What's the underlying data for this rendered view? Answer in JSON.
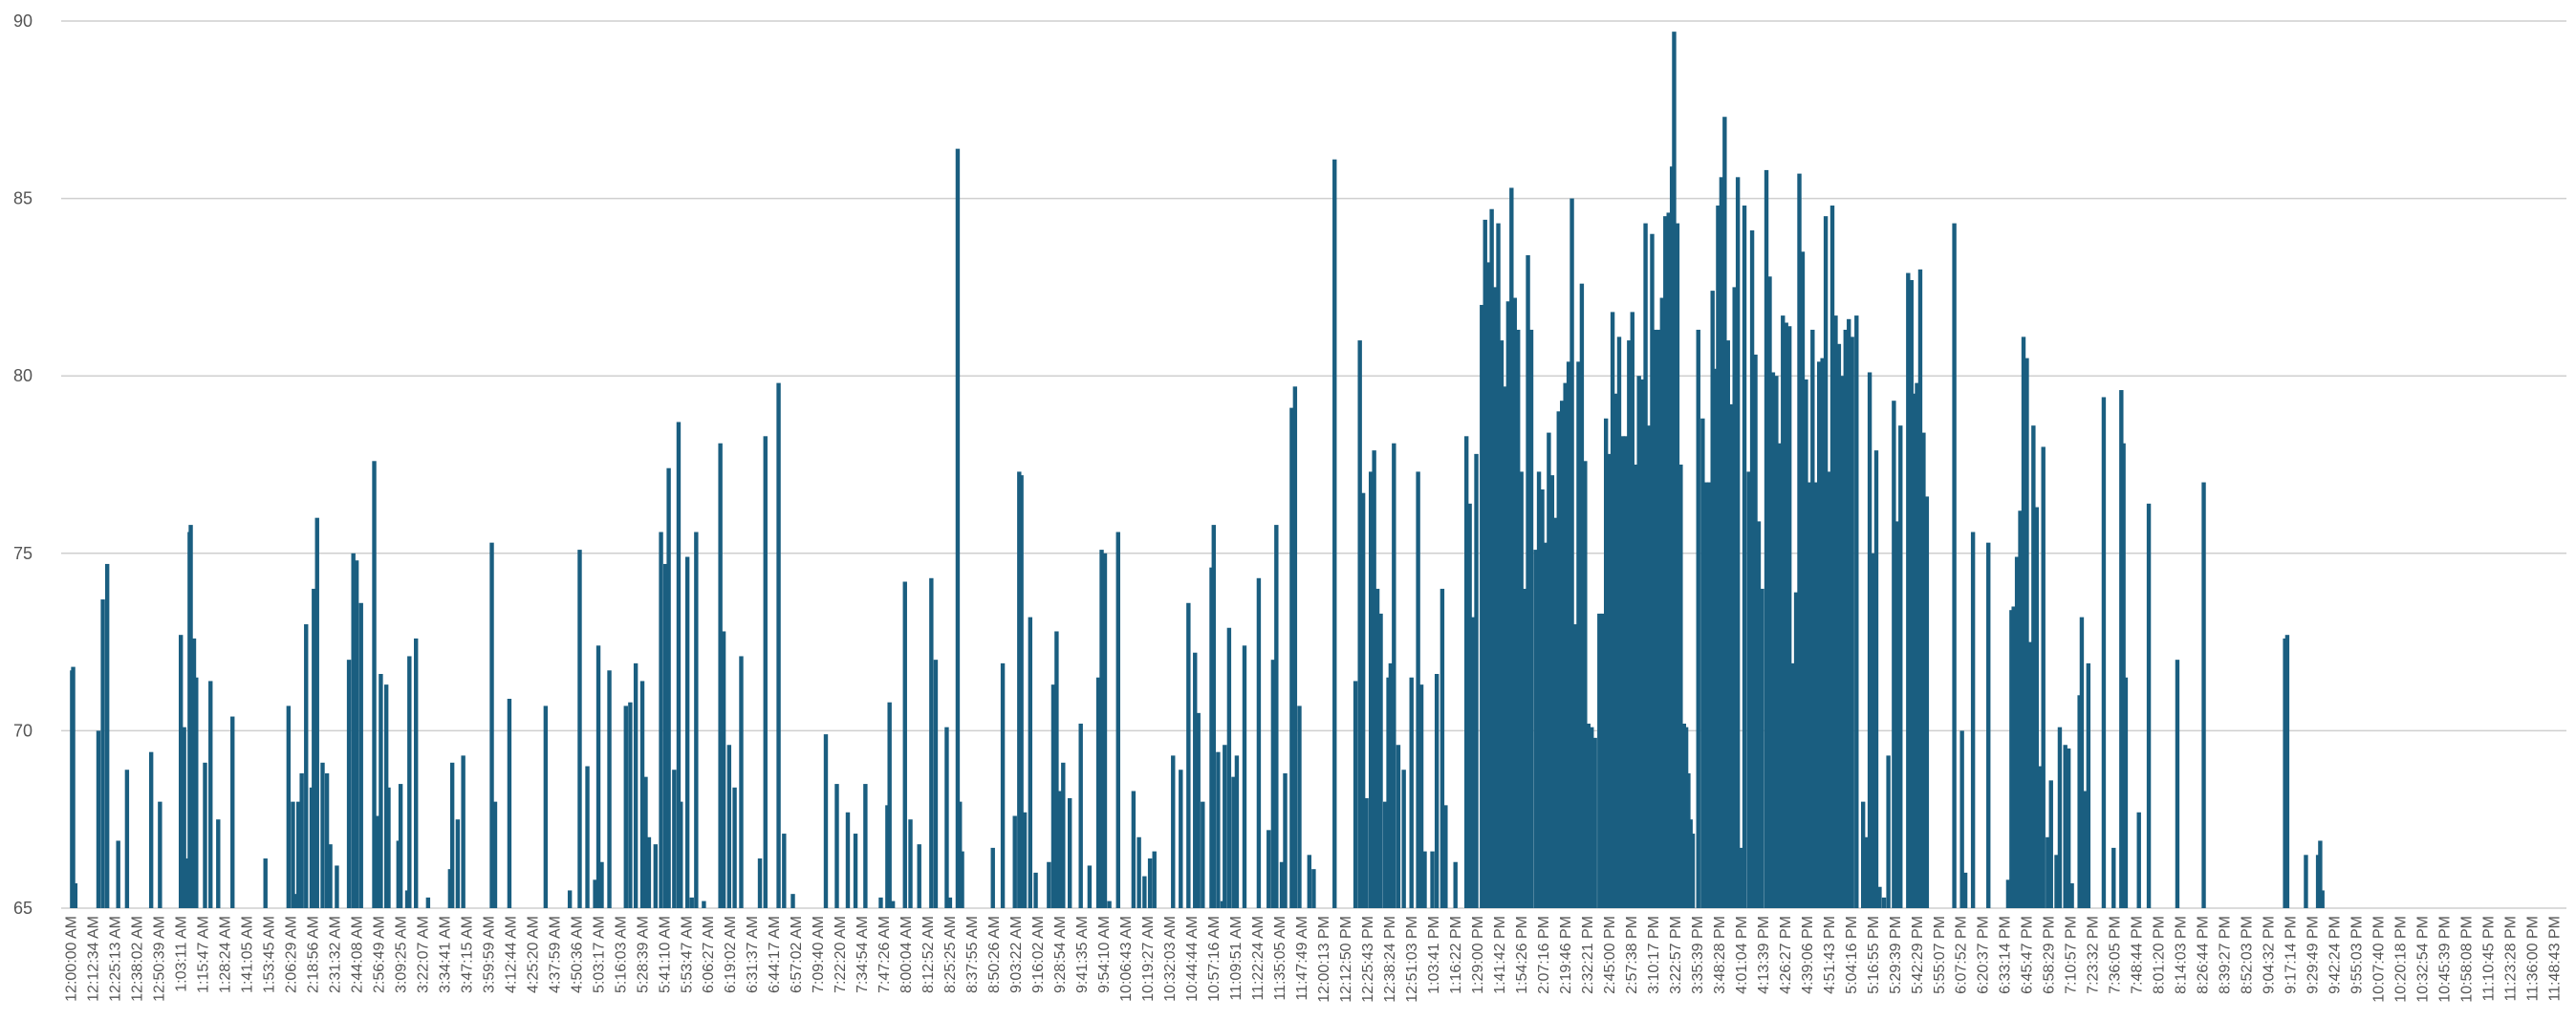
{
  "chart_data": {
    "type": "bar",
    "title": "",
    "xlabel": "",
    "ylabel": "",
    "ylim": [
      65,
      90
    ],
    "grid": true,
    "legend": "none",
    "bar_color": "#1a5e80",
    "y_ticks": [
      "65",
      "70",
      "75",
      "80",
      "85",
      "90"
    ],
    "categories": [
      "12:00:00 AM",
      "12:12:34 AM",
      "12:25:13 AM",
      "12:38:02 AM",
      "12:50:39 AM",
      "1:03:11 AM",
      "1:15:47 AM",
      "1:28:24 AM",
      "1:41:05 AM",
      "1:53:45 AM",
      "2:06:29 AM",
      "2:18:56 AM",
      "2:31:32 AM",
      "2:44:08 AM",
      "2:56:49 AM",
      "3:09:25 AM",
      "3:22:07 AM",
      "3:34:41 AM",
      "3:47:15 AM",
      "3:59:59 AM",
      "4:12:44 AM",
      "4:25:20 AM",
      "4:37:59 AM",
      "4:50:36 AM",
      "5:03:17 AM",
      "5:16:03 AM",
      "5:28:39 AM",
      "5:41:10 AM",
      "5:53:47 AM",
      "6:06:27 AM",
      "6:19:02 AM",
      "6:31:37 AM",
      "6:44:17 AM",
      "6:57:02 AM",
      "7:09:40 AM",
      "7:22:20 AM",
      "7:34:54 AM",
      "7:47:26 AM",
      "8:00:04 AM",
      "8:12:52 AM",
      "8:25:25 AM",
      "8:37:55 AM",
      "8:50:26 AM",
      "9:03:22 AM",
      "9:16:02 AM",
      "9:28:54 AM",
      "9:41:35 AM",
      "9:54:10 AM",
      "10:06:43 AM",
      "10:19:27 AM",
      "10:32:03 AM",
      "10:44:44 AM",
      "10:57:16 AM",
      "11:09:51 AM",
      "11:22:24 AM",
      "11:35:05 AM",
      "11:47:49 AM",
      "12:00:13 PM",
      "12:12:50 PM",
      "12:25:43 PM",
      "12:38:24 PM",
      "12:51:03 PM",
      "1:03:41 PM",
      "1:16:22 PM",
      "1:29:00 PM",
      "1:41:42 PM",
      "1:54:26 PM",
      "2:07:16 PM",
      "2:19:46 PM",
      "2:32:21 PM",
      "2:45:00 PM",
      "2:57:38 PM",
      "3:10:17 PM",
      "3:22:57 PM",
      "3:35:39 PM",
      "3:48:28 PM",
      "4:01:04 PM",
      "4:13:39 PM",
      "4:26:27 PM",
      "4:39:06 PM",
      "4:51:43 PM",
      "5:04:16 PM",
      "5:16:55 PM",
      "5:29:39 PM",
      "5:42:29 PM",
      "5:55:07 PM",
      "6:07:52 PM",
      "6:20:37 PM",
      "6:33:14 PM",
      "6:45:47 PM",
      "6:58:29 PM",
      "7:10:57 PM",
      "7:23:32 PM",
      "7:36:05 PM",
      "7:48:44 PM",
      "8:01:20 PM",
      "8:14:03 PM",
      "8:26:44 PM",
      "8:39:27 PM",
      "8:52:03 PM",
      "9:04:32 PM",
      "9:17:14 PM",
      "9:29:49 PM",
      "9:42:24 PM",
      "9:55:03 PM",
      "10:07:40 PM",
      "10:20:18 PM",
      "10:32:54 PM",
      "10:45:39 PM",
      "10:58:08 PM",
      "11:10:45 PM",
      "11:23:28 PM",
      "11:36:00 PM",
      "11:48:43 PM"
    ],
    "bars": [
      [
        0.4,
        71.7
      ],
      [
        0.45,
        71.8
      ],
      [
        0.55,
        65.7
      ],
      [
        1.6,
        70.0
      ],
      [
        1.8,
        73.7
      ],
      [
        2.0,
        74.7
      ],
      [
        2.5,
        66.9
      ],
      [
        2.9,
        68.9
      ],
      [
        4.0,
        69.4
      ],
      [
        4.4,
        68.0
      ],
      [
        5.35,
        72.7
      ],
      [
        5.5,
        70.1
      ],
      [
        5.6,
        66.4
      ],
      [
        5.75,
        75.6
      ],
      [
        5.8,
        75.8
      ],
      [
        5.95,
        72.6
      ],
      [
        6.05,
        71.5
      ],
      [
        6.45,
        69.1
      ],
      [
        6.7,
        71.4
      ],
      [
        7.05,
        67.5
      ],
      [
        7.7,
        70.4
      ],
      [
        9.2,
        66.4
      ],
      [
        10.25,
        70.7
      ],
      [
        10.45,
        68.0
      ],
      [
        10.55,
        65.4
      ],
      [
        10.7,
        68.0
      ],
      [
        10.85,
        68.8
      ],
      [
        11.05,
        73.0
      ],
      [
        11.3,
        68.4
      ],
      [
        11.4,
        74.0
      ],
      [
        11.55,
        76.0
      ],
      [
        11.8,
        69.1
      ],
      [
        12.0,
        68.8
      ],
      [
        12.15,
        66.8
      ],
      [
        12.45,
        66.2
      ],
      [
        13.0,
        72.0
      ],
      [
        13.2,
        75.0
      ],
      [
        13.35,
        74.8
      ],
      [
        13.55,
        73.6
      ],
      [
        14.15,
        77.6
      ],
      [
        14.3,
        67.6
      ],
      [
        14.45,
        71.6
      ],
      [
        14.7,
        71.3
      ],
      [
        14.8,
        68.4
      ],
      [
        15.25,
        66.9
      ],
      [
        15.35,
        68.5
      ],
      [
        15.75,
        72.1
      ],
      [
        15.65,
        65.5
      ],
      [
        16.05,
        72.6
      ],
      [
        16.6,
        65.3
      ],
      [
        17.6,
        66.1
      ],
      [
        17.7,
        69.1
      ],
      [
        17.95,
        67.5
      ],
      [
        18.2,
        69.3
      ],
      [
        19.5,
        75.3
      ],
      [
        19.65,
        68.0
      ],
      [
        20.3,
        70.9
      ],
      [
        20.95,
        65.0
      ],
      [
        21.95,
        70.7
      ],
      [
        23.05,
        65.5
      ],
      [
        23.5,
        75.1
      ],
      [
        23.85,
        69.0
      ],
      [
        24.2,
        65.8
      ],
      [
        24.35,
        72.4
      ],
      [
        24.5,
        66.3
      ],
      [
        24.85,
        71.7
      ],
      [
        25.6,
        70.7
      ],
      [
        25.8,
        70.8
      ],
      [
        26.05,
        71.9
      ],
      [
        26.35,
        71.4
      ],
      [
        26.5,
        68.7
      ],
      [
        26.65,
        67.0
      ],
      [
        26.95,
        66.8
      ],
      [
        27.2,
        75.6
      ],
      [
        27.4,
        74.7
      ],
      [
        27.55,
        77.4
      ],
      [
        27.8,
        68.9
      ],
      [
        28.0,
        78.7
      ],
      [
        28.1,
        68.0
      ],
      [
        28.4,
        74.9
      ],
      [
        28.6,
        65.3
      ],
      [
        28.8,
        75.6
      ],
      [
        29.15,
        65.2
      ],
      [
        29.5,
        65.0
      ],
      [
        29.9,
        78.1
      ],
      [
        30.05,
        72.8
      ],
      [
        30.3,
        69.6
      ],
      [
        30.55,
        68.4
      ],
      [
        30.85,
        72.1
      ],
      [
        31.7,
        66.4
      ],
      [
        31.95,
        78.3
      ],
      [
        32.55,
        79.8
      ],
      [
        32.8,
        67.1
      ],
      [
        33.2,
        65.4
      ],
      [
        34.7,
        69.9
      ],
      [
        35.2,
        68.5
      ],
      [
        35.7,
        67.7
      ],
      [
        36.05,
        67.1
      ],
      [
        36.5,
        68.5
      ],
      [
        37.2,
        65.3
      ],
      [
        37.5,
        67.9
      ],
      [
        37.6,
        70.8
      ],
      [
        37.75,
        65.2
      ],
      [
        38.3,
        74.2
      ],
      [
        38.55,
        67.5
      ],
      [
        38.95,
        66.8
      ],
      [
        39.5,
        74.3
      ],
      [
        39.7,
        72.0
      ],
      [
        40.2,
        70.1
      ],
      [
        40.35,
        65.3
      ],
      [
        40.7,
        86.4
      ],
      [
        40.8,
        68.0
      ],
      [
        40.9,
        66.6
      ],
      [
        42.3,
        66.7
      ],
      [
        42.75,
        71.9
      ],
      [
        43.05,
        65.0
      ],
      [
        43.3,
        67.6
      ],
      [
        43.5,
        77.3
      ],
      [
        43.6,
        77.2
      ],
      [
        43.75,
        67.7
      ],
      [
        44.0,
        73.2
      ],
      [
        44.25,
        66.0
      ],
      [
        44.85,
        66.3
      ],
      [
        45.05,
        71.3
      ],
      [
        45.2,
        72.8
      ],
      [
        45.35,
        68.3
      ],
      [
        45.5,
        69.1
      ],
      [
        45.8,
        68.1
      ],
      [
        46.05,
        65.0
      ],
      [
        46.3,
        70.2
      ],
      [
        46.7,
        66.2
      ],
      [
        47.1,
        71.5
      ],
      [
        47.25,
        75.1
      ],
      [
        47.4,
        75.0
      ],
      [
        47.6,
        65.2
      ],
      [
        48.0,
        75.6
      ],
      [
        48.7,
        68.3
      ],
      [
        48.95,
        67.0
      ],
      [
        49.2,
        65.9
      ],
      [
        49.45,
        66.4
      ],
      [
        49.65,
        66.6
      ],
      [
        50.5,
        69.3
      ],
      [
        50.85,
        68.9
      ],
      [
        51.2,
        73.6
      ],
      [
        51.5,
        72.2
      ],
      [
        51.65,
        70.5
      ],
      [
        51.85,
        68.0
      ],
      [
        52.25,
        74.6
      ],
      [
        52.35,
        75.8
      ],
      [
        52.55,
        69.4
      ],
      [
        52.75,
        65.2
      ],
      [
        52.85,
        69.6
      ],
      [
        53.05,
        72.9
      ],
      [
        53.25,
        68.7
      ],
      [
        53.4,
        69.3
      ],
      [
        53.75,
        72.4
      ],
      [
        54.4,
        74.3
      ],
      [
        54.85,
        67.2
      ],
      [
        55.05,
        72.0
      ],
      [
        55.2,
        75.8
      ],
      [
        55.45,
        66.3
      ],
      [
        55.6,
        68.8
      ],
      [
        55.9,
        79.1
      ],
      [
        56.05,
        79.7
      ],
      [
        56.25,
        70.7
      ],
      [
        56.7,
        66.5
      ],
      [
        56.9,
        66.1
      ],
      [
        57.85,
        86.1
      ],
      [
        58.8,
        71.4
      ],
      [
        59.0,
        81.0
      ],
      [
        59.15,
        76.7
      ],
      [
        59.3,
        68.1
      ],
      [
        59.5,
        77.3
      ],
      [
        59.65,
        77.9
      ],
      [
        59.8,
        74.0
      ],
      [
        59.95,
        73.3
      ],
      [
        60.15,
        68.0
      ],
      [
        60.3,
        71.5
      ],
      [
        60.4,
        71.9
      ],
      [
        60.55,
        78.1
      ],
      [
        60.75,
        69.6
      ],
      [
        61.0,
        68.9
      ],
      [
        61.35,
        71.5
      ],
      [
        61.65,
        77.3
      ],
      [
        61.8,
        71.3
      ],
      [
        61.95,
        66.6
      ],
      [
        62.3,
        66.6
      ],
      [
        62.5,
        71.6
      ],
      [
        62.75,
        74.0
      ],
      [
        62.9,
        67.9
      ],
      [
        63.35,
        66.3
      ],
      [
        63.85,
        78.3
      ],
      [
        64.0,
        76.4
      ],
      [
        64.15,
        73.2
      ],
      [
        64.3,
        77.8
      ],
      [
        64.55,
        82.0
      ],
      [
        64.7,
        84.4
      ],
      [
        64.85,
        83.2
      ],
      [
        65.0,
        84.7
      ],
      [
        65.15,
        82.5
      ],
      [
        65.3,
        84.3
      ],
      [
        65.45,
        81.0
      ],
      [
        65.6,
        79.7
      ],
      [
        65.75,
        82.1
      ],
      [
        65.9,
        85.3
      ],
      [
        66.05,
        82.2
      ],
      [
        66.2,
        81.3
      ],
      [
        66.35,
        77.3
      ],
      [
        66.5,
        74.0
      ],
      [
        66.65,
        83.4
      ],
      [
        66.8,
        81.3
      ],
      [
        67.0,
        75.1
      ],
      [
        67.15,
        77.3
      ],
      [
        67.3,
        76.8
      ],
      [
        67.45,
        75.3
      ],
      [
        67.6,
        78.4
      ],
      [
        67.75,
        77.2
      ],
      [
        67.9,
        76.0
      ],
      [
        68.05,
        79.0
      ],
      [
        68.2,
        79.3
      ],
      [
        68.35,
        79.8
      ],
      [
        68.5,
        80.4
      ],
      [
        68.65,
        85.0
      ],
      [
        68.8,
        73.0
      ],
      [
        68.95,
        80.4
      ],
      [
        69.1,
        82.6
      ],
      [
        69.25,
        77.6
      ],
      [
        69.4,
        70.2
      ],
      [
        69.55,
        70.1
      ],
      [
        69.7,
        69.8
      ],
      [
        69.9,
        73.3
      ],
      [
        70.05,
        73.3
      ],
      [
        70.2,
        78.8
      ],
      [
        70.35,
        77.8
      ],
      [
        70.5,
        81.8
      ],
      [
        70.65,
        79.5
      ],
      [
        70.8,
        81.1
      ],
      [
        70.95,
        78.3
      ],
      [
        71.1,
        78.3
      ],
      [
        71.25,
        81.0
      ],
      [
        71.4,
        81.8
      ],
      [
        71.55,
        77.5
      ],
      [
        71.7,
        80.0
      ],
      [
        71.85,
        79.9
      ],
      [
        72.0,
        84.3
      ],
      [
        72.15,
        78.6
      ],
      [
        72.3,
        84.0
      ],
      [
        72.45,
        81.3
      ],
      [
        72.6,
        81.3
      ],
      [
        72.75,
        82.2
      ],
      [
        72.9,
        84.5
      ],
      [
        73.05,
        84.6
      ],
      [
        73.2,
        85.9
      ],
      [
        73.3,
        89.7
      ],
      [
        73.45,
        84.3
      ],
      [
        73.6,
        77.5
      ],
      [
        73.75,
        70.2
      ],
      [
        73.85,
        70.1
      ],
      [
        73.95,
        68.8
      ],
      [
        74.05,
        67.5
      ],
      [
        74.15,
        67.1
      ],
      [
        74.4,
        81.3
      ],
      [
        74.6,
        78.8
      ],
      [
        74.75,
        77.0
      ],
      [
        74.9,
        77.0
      ],
      [
        75.05,
        82.4
      ],
      [
        75.2,
        80.2
      ],
      [
        75.3,
        84.8
      ],
      [
        75.45,
        85.6
      ],
      [
        75.6,
        87.3
      ],
      [
        75.75,
        81.0
      ],
      [
        75.9,
        79.2
      ],
      [
        76.05,
        82.5
      ],
      [
        76.2,
        85.6
      ],
      [
        76.35,
        66.7
      ],
      [
        76.5,
        84.8
      ],
      [
        76.7,
        77.3
      ],
      [
        76.85,
        84.1
      ],
      [
        77.0,
        80.6
      ],
      [
        77.15,
        75.9
      ],
      [
        77.3,
        74.0
      ],
      [
        77.5,
        85.8
      ],
      [
        77.65,
        82.8
      ],
      [
        77.8,
        80.1
      ],
      [
        77.95,
        80.0
      ],
      [
        78.1,
        78.1
      ],
      [
        78.25,
        81.7
      ],
      [
        78.4,
        81.5
      ],
      [
        78.55,
        81.4
      ],
      [
        78.7,
        71.9
      ],
      [
        78.85,
        73.9
      ],
      [
        79.0,
        85.7
      ],
      [
        79.15,
        83.5
      ],
      [
        79.3,
        79.9
      ],
      [
        79.45,
        77.0
      ],
      [
        79.6,
        81.3
      ],
      [
        79.75,
        77.0
      ],
      [
        79.9,
        80.4
      ],
      [
        80.05,
        80.5
      ],
      [
        80.2,
        84.5
      ],
      [
        80.35,
        77.3
      ],
      [
        80.5,
        84.8
      ],
      [
        80.65,
        81.7
      ],
      [
        80.8,
        80.9
      ],
      [
        80.95,
        80.0
      ],
      [
        81.1,
        81.3
      ],
      [
        81.25,
        81.6
      ],
      [
        81.4,
        81.1
      ],
      [
        81.6,
        81.7
      ],
      [
        81.9,
        68.0
      ],
      [
        82.05,
        67.0
      ],
      [
        82.2,
        80.1
      ],
      [
        82.35,
        75.0
      ],
      [
        82.5,
        77.9
      ],
      [
        82.65,
        65.6
      ],
      [
        82.85,
        65.3
      ],
      [
        83.05,
        69.3
      ],
      [
        83.3,
        79.3
      ],
      [
        83.45,
        75.9
      ],
      [
        83.6,
        78.6
      ],
      [
        83.75,
        65.0
      ],
      [
        83.95,
        82.9
      ],
      [
        84.1,
        82.7
      ],
      [
        84.25,
        79.5
      ],
      [
        84.35,
        79.8
      ],
      [
        84.5,
        83.0
      ],
      [
        84.65,
        78.4
      ],
      [
        84.8,
        76.6
      ],
      [
        86.05,
        84.3
      ],
      [
        86.4,
        70.0
      ],
      [
        86.55,
        66.0
      ],
      [
        86.9,
        75.6
      ],
      [
        87.6,
        75.3
      ],
      [
        88.5,
        65.8
      ],
      [
        88.65,
        73.4
      ],
      [
        88.75,
        73.5
      ],
      [
        88.9,
        74.9
      ],
      [
        89.05,
        76.2
      ],
      [
        89.2,
        81.1
      ],
      [
        89.35,
        80.5
      ],
      [
        89.5,
        72.5
      ],
      [
        89.65,
        78.6
      ],
      [
        89.8,
        76.3
      ],
      [
        89.95,
        69.0
      ],
      [
        90.1,
        78.0
      ],
      [
        90.3,
        67.0
      ],
      [
        90.45,
        68.6
      ],
      [
        90.7,
        66.5
      ],
      [
        90.85,
        70.1
      ],
      [
        91.1,
        69.6
      ],
      [
        91.25,
        69.5
      ],
      [
        91.4,
        65.7
      ],
      [
        91.75,
        71.0
      ],
      [
        91.85,
        73.2
      ],
      [
        92.0,
        68.3
      ],
      [
        92.15,
        71.9
      ],
      [
        92.85,
        79.4
      ],
      [
        93.3,
        66.7
      ],
      [
        93.65,
        79.6
      ],
      [
        93.75,
        78.1
      ],
      [
        93.85,
        71.5
      ],
      [
        94.45,
        67.7
      ],
      [
        94.9,
        76.4
      ],
      [
        96.2,
        72.0
      ],
      [
        97.4,
        77.0
      ],
      [
        101.1,
        72.6
      ],
      [
        101.2,
        72.7
      ],
      [
        102.05,
        66.5
      ],
      [
        102.6,
        66.5
      ],
      [
        102.7,
        66.9
      ],
      [
        102.8,
        65.5
      ]
    ]
  }
}
